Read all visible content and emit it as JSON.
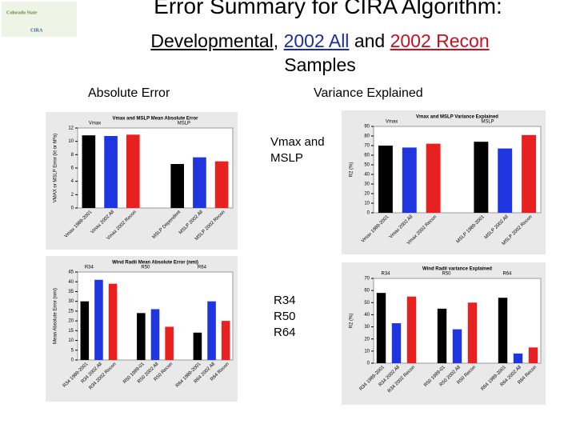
{
  "logo": {
    "name": "Colorado State",
    "org": "CIRA"
  },
  "slide": {
    "title": "Error Summary for CIRA Algorithm:",
    "subtitle": [
      "Developmental",
      ",",
      "2002 All",
      "and",
      "2002 Recon",
      "Samples"
    ],
    "left_header": "Absolute Error",
    "right_header": "Variance Explained",
    "note_top": "Vmax and MSLP",
    "note_bottom": [
      "R34",
      "R50",
      "R64"
    ]
  },
  "chart_data": [
    {
      "type": "bar",
      "title": "Vmax and MSLP Mean Absolute Error",
      "y_label": "VMAX or MSLP Error (kt or hPa)",
      "ylim": [
        0,
        12
      ],
      "yticks": [
        0,
        2,
        4,
        6,
        8,
        10,
        12
      ],
      "colors": [
        "#000000",
        "#1f35e0",
        "#e8201f"
      ],
      "groups": [
        {
          "label": "Vmax",
          "categories": [
            "Vmax 1989-2001",
            "Vmax 2002 All",
            "Vmax 2002 Recon"
          ],
          "values": [
            10.9,
            10.8,
            11.0
          ]
        },
        {
          "label": "MSLP",
          "categories": [
            "MSLP Dependent",
            "MSLP 2002 All",
            "MSLP 2002 Recon"
          ],
          "values": [
            6.6,
            7.6,
            7.0
          ]
        }
      ]
    },
    {
      "type": "bar",
      "title": "Vmax and MSLP Variance Explained",
      "y_label": "R2 (%)",
      "ylim": [
        0,
        90
      ],
      "yticks": [
        0,
        10,
        20,
        30,
        40,
        50,
        60,
        70,
        80,
        90
      ],
      "colors": [
        "#000000",
        "#1f35e0",
        "#e8201f"
      ],
      "groups": [
        {
          "label": "Vmax",
          "categories": [
            "Vmax 1989-2001",
            "Vmax 2002 All",
            "Vmax 2002 Recon"
          ],
          "values": [
            70,
            68,
            72
          ]
        },
        {
          "label": "MSLP",
          "categories": [
            "MSLP 1989-2001",
            "MSLP 2002 All",
            "MSLP 2002 Recon"
          ],
          "values": [
            74,
            67,
            81
          ]
        }
      ]
    },
    {
      "type": "bar",
      "title": "Wind Radii Mean Absolute Error (nmi)",
      "y_label": "Mean Absolute Error (nmi)",
      "ylim": [
        0,
        45
      ],
      "yticks": [
        0,
        5,
        10,
        15,
        20,
        25,
        30,
        35,
        40,
        45
      ],
      "colors": [
        "#000000",
        "#1f35e0",
        "#e8201f"
      ],
      "groups": [
        {
          "label": "R34",
          "categories": [
            "R34 1989-2001",
            "R34 2002 All",
            "R34 2002 Recon"
          ],
          "values": [
            30,
            41,
            39
          ]
        },
        {
          "label": "R50",
          "categories": [
            "R50 1989-01",
            "R50 2002 All",
            "R50 Recon"
          ],
          "values": [
            24,
            26,
            17
          ]
        },
        {
          "label": "R64",
          "categories": [
            "R64 1989-2001",
            "R64 2002 All",
            "R64 Recon"
          ],
          "values": [
            14,
            30,
            20
          ]
        }
      ]
    },
    {
      "type": "bar",
      "title": "Wind Radii variance Explained",
      "y_label": "R2 (%)",
      "ylim": [
        0,
        70
      ],
      "yticks": [
        0,
        10,
        20,
        30,
        40,
        50,
        60,
        70
      ],
      "colors": [
        "#000000",
        "#1f35e0",
        "#e8201f"
      ],
      "groups": [
        {
          "label": "R34",
          "categories": [
            "R34 1989-2001",
            "R34 2002 All",
            "R34 2002 Recon"
          ],
          "values": [
            58,
            33,
            55
          ]
        },
        {
          "label": "R50",
          "categories": [
            "R50 1989-01",
            "R50 2002 All",
            "R50 Recon"
          ],
          "values": [
            45,
            28,
            50
          ]
        },
        {
          "label": "R64",
          "categories": [
            "R64 1989-2001",
            "R64 2002 All",
            "R64 Recon"
          ],
          "values": [
            54,
            8,
            13
          ]
        }
      ]
    }
  ]
}
